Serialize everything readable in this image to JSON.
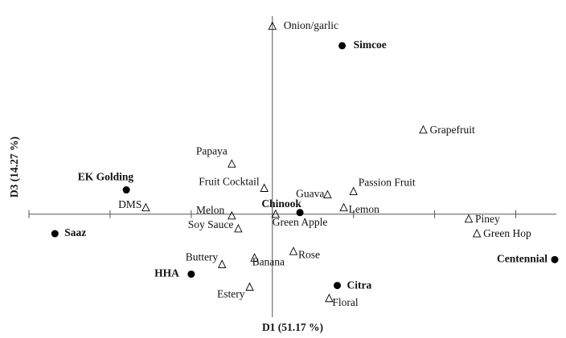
{
  "chart_data": {
    "type": "scatter",
    "xlabel": "D1 (51.17 %)",
    "ylabel": "D3 (14.27 %)",
    "xlim": [
      -1.5,
      1.75
    ],
    "ylim": [
      -0.65,
      1.2
    ],
    "xticks": [
      -1.5,
      -1,
      -0.5,
      0,
      0.5,
      1,
      1.5
    ],
    "series": [
      {
        "marker": "circle",
        "color": "#000000",
        "labels": [
          "Simcoe",
          "EK Golding",
          "Saaz",
          "Chinook",
          "HHA",
          "Citra",
          "Centennial"
        ],
        "x": [
          0.43,
          -0.9,
          -1.34,
          0.17,
          -0.5,
          0.4,
          1.74
        ],
        "values": [
          1.04,
          0.15,
          -0.12,
          0.01,
          -0.37,
          -0.44,
          -0.28
        ]
      },
      {
        "marker": "triangle",
        "color": "#000000",
        "labels": [
          "Onion/garlic",
          "Grapefruit",
          "Papaya",
          "Fruit Cocktail",
          "Passion Fruit",
          "Guava",
          "DMS",
          "Melon",
          "Lemon",
          "Green Apple",
          "Piney",
          "Soy Sauce",
          "Green Hop",
          "Rose",
          "Buttery",
          "Banana",
          "Estery",
          "Floral"
        ],
        "x": [
          0,
          0.93,
          -0.25,
          -0.05,
          0.5,
          0.34,
          -0.78,
          -0.25,
          0.44,
          0.02,
          1.21,
          -0.21,
          1.26,
          0.13,
          -0.31,
          -0.11,
          -0.14,
          0.35
        ],
        "values": [
          1.16,
          0.52,
          0.31,
          0.16,
          0.14,
          0.12,
          0.04,
          -0.01,
          0.04,
          0,
          -0.03,
          -0.09,
          -0.12,
          -0.23,
          -0.31,
          -0.27,
          -0.45,
          -0.52
        ]
      }
    ]
  }
}
